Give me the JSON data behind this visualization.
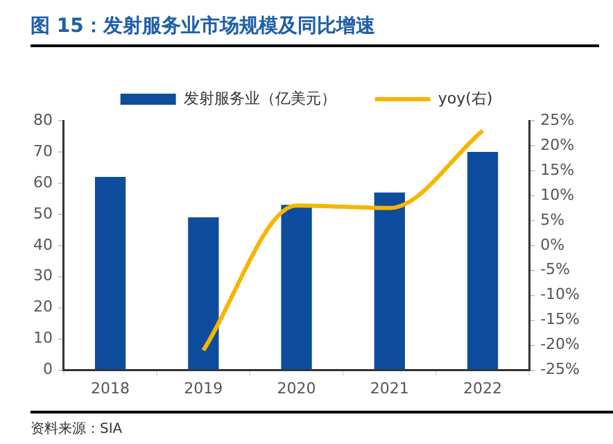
{
  "chart_data": {
    "type": "bar",
    "title": "图 15：发射服务业市场规模及同比增速",
    "categories": [
      "2018",
      "2019",
      "2020",
      "2021",
      "2022"
    ],
    "series": [
      {
        "name": "发射服务业（亿美元）",
        "color": "#0e4c9e",
        "values": [
          62,
          49,
          53,
          57,
          70
        ]
      },
      {
        "name": "yoy(右)",
        "type": "line",
        "axis": "y2",
        "color": "#f7b500",
        "values": [
          null,
          -21,
          8,
          7.5,
          23
        ]
      }
    ],
    "ylim": [
      0,
      80
    ],
    "yticks": [
      0,
      10,
      20,
      30,
      40,
      50,
      60,
      70,
      80
    ],
    "y2lim": [
      -25,
      25
    ],
    "y2ticks": [
      {
        "value": -25,
        "label": "-25%"
      },
      {
        "value": -20,
        "label": "-20%"
      },
      {
        "value": -15,
        "label": "-15%"
      },
      {
        "value": -10,
        "label": "-10%"
      },
      {
        "value": -5,
        "label": "-5%"
      },
      {
        "value": 0,
        "label": "0%"
      },
      {
        "value": 5,
        "label": "5%"
      },
      {
        "value": 10,
        "label": "10%"
      },
      {
        "value": 15,
        "label": "15%"
      },
      {
        "value": 20,
        "label": "20%"
      },
      {
        "value": 25,
        "label": "25%"
      }
    ],
    "legend": "top",
    "grid": false,
    "marker": "none",
    "line_style": "solid",
    "annotations": [
      "资料来源：SIA"
    ]
  }
}
